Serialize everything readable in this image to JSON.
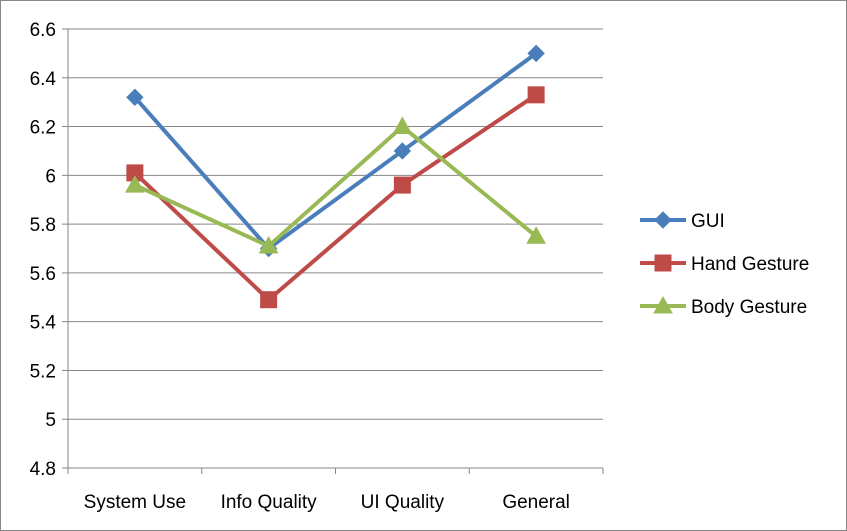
{
  "chart_data": {
    "type": "line",
    "title": "",
    "xlabel": "",
    "ylabel": "",
    "categories": [
      "System Use",
      "Info Quality",
      "UI Quality",
      "General"
    ],
    "ylim": [
      4.8,
      6.6
    ],
    "yticks": [
      4.8,
      5,
      5.2,
      5.4,
      5.6,
      5.8,
      6,
      6.2,
      6.4,
      6.6
    ],
    "ytick_labels": [
      "4.8",
      "5",
      "5.2",
      "5.4",
      "5.6",
      "5.8",
      "6",
      "6.2",
      "6.4",
      "6.6"
    ],
    "grid": true,
    "legend_position": "right",
    "series": [
      {
        "name": "GUI",
        "values": [
          6.32,
          5.7,
          6.1,
          6.5
        ],
        "color": "#4a7ebb",
        "marker": "diamond"
      },
      {
        "name": "Hand Gesture",
        "values": [
          6.01,
          5.49,
          5.96,
          6.33
        ],
        "color": "#be4b48",
        "marker": "square"
      },
      {
        "name": "Body Gesture",
        "values": [
          5.96,
          5.71,
          6.2,
          5.75
        ],
        "color": "#98b954",
        "marker": "triangle"
      }
    ]
  }
}
